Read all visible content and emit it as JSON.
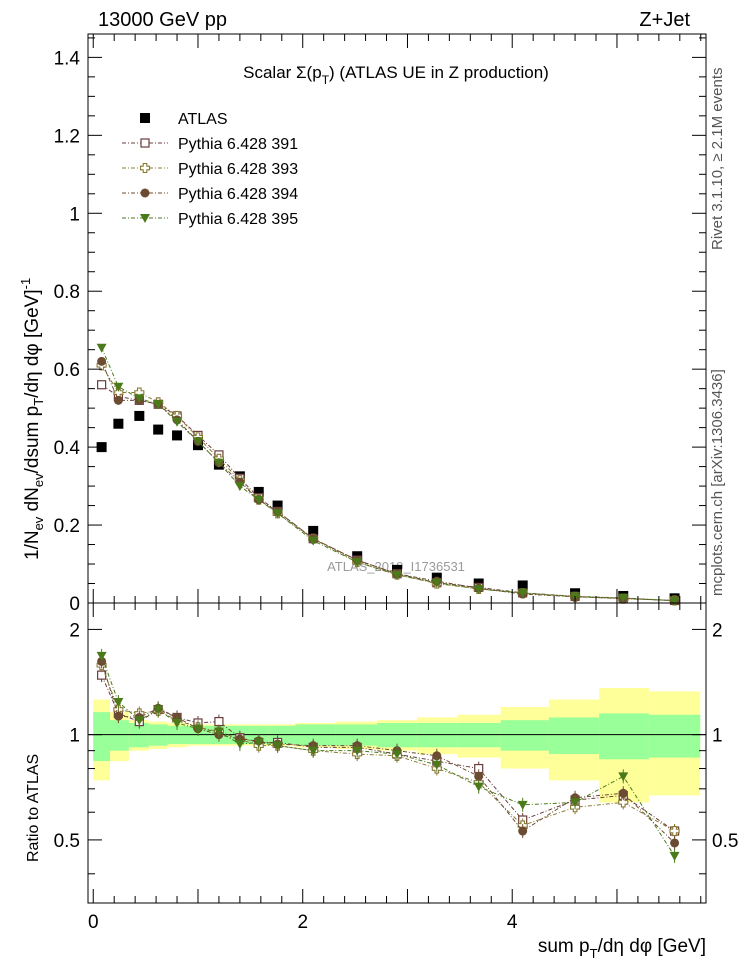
{
  "header": {
    "left": "13000 GeV pp",
    "right": "Z+Jet",
    "watermark": "ATLAS_2019_I1736531",
    "side_top": "Rivet 3.1.10, ≥ 2.1M events",
    "side_bottom": "mcplots.cern.ch [arXiv:1306.3436]"
  },
  "chart_data": {
    "type": "scatter",
    "title": "Scalar Σ(p_T) (ATLAS UE in Z production)",
    "xlabel": "sum p_T/dη dφ [GeV]",
    "ylabel": "1/N_ev dN_ev/dsum p_T/dη dφ [GeV]^-1",
    "ratio_ylabel": "Ratio to ATLAS",
    "xlim": [
      -0.05,
      5.85
    ],
    "ylim": [
      0,
      1.46
    ],
    "ratio_ylim": [
      0.33,
      2.38
    ],
    "xticks": [
      0,
      2,
      4
    ],
    "yticks": [
      0,
      0.2,
      0.4,
      0.6,
      0.8,
      1,
      1.2,
      1.4
    ],
    "yticks_labels": [
      "0",
      "0.2",
      "0.4",
      "0.6",
      "0.8",
      "1",
      "1.2",
      "1.4"
    ],
    "ratio_yticks": [
      0.5,
      1,
      2
    ],
    "legend_position": "top-left",
    "x": [
      0.08,
      0.24,
      0.44,
      0.62,
      0.8,
      1.0,
      1.2,
      1.4,
      1.58,
      1.76,
      2.1,
      2.52,
      2.9,
      3.28,
      3.68,
      4.1,
      4.6,
      5.06,
      5.55
    ],
    "reference_band": {
      "inner": [
        0.16,
        0.1,
        0.08,
        0.07,
        0.06,
        0.06,
        0.06,
        0.06,
        0.06,
        0.06,
        0.07,
        0.07,
        0.08,
        0.08,
        0.08,
        0.1,
        0.12,
        0.15,
        0.14
      ],
      "outer": [
        0.26,
        0.16,
        0.1,
        0.09,
        0.08,
        0.07,
        0.07,
        0.07,
        0.07,
        0.07,
        0.08,
        0.09,
        0.1,
        0.12,
        0.14,
        0.2,
        0.26,
        0.36,
        0.33
      ]
    },
    "series": [
      {
        "name": "ATLAS",
        "color": "#000000",
        "marker": "square-filled",
        "values": [
          0.4,
          0.46,
          0.48,
          0.445,
          0.43,
          0.405,
          0.355,
          0.325,
          0.285,
          0.25,
          0.185,
          0.12,
          0.085,
          0.065,
          0.05,
          0.045,
          0.025,
          0.018,
          0.012
        ]
      },
      {
        "name": "Pythia 6.428 391",
        "color": "#6a3d3d",
        "marker": "square-open",
        "values": [
          0.56,
          0.53,
          0.52,
          0.51,
          0.48,
          0.43,
          0.38,
          0.32,
          0.27,
          0.235,
          0.165,
          0.11,
          0.075,
          0.052,
          0.04,
          0.026,
          0.017,
          0.012,
          0.0065
        ],
        "ratio": [
          1.48,
          1.15,
          1.09,
          1.18,
          1.12,
          1.08,
          1.09,
          0.98,
          0.95,
          0.95,
          0.92,
          0.92,
          0.88,
          0.84,
          0.8,
          0.57,
          0.65,
          0.67,
          0.53
        ]
      },
      {
        "name": "Pythia 6.428 393",
        "color": "#8a7a35",
        "marker": "cross-open",
        "values": [
          0.61,
          0.54,
          0.54,
          0.515,
          0.48,
          0.425,
          0.37,
          0.315,
          0.265,
          0.23,
          0.165,
          0.105,
          0.073,
          0.05,
          0.036,
          0.025,
          0.016,
          0.011,
          0.0065
        ],
        "ratio": [
          1.58,
          1.18,
          1.15,
          1.17,
          1.1,
          1.05,
          1.02,
          0.97,
          0.93,
          0.93,
          0.9,
          0.88,
          0.87,
          0.8,
          0.73,
          0.55,
          0.62,
          0.64,
          0.53
        ]
      },
      {
        "name": "Pythia 6.428 394",
        "color": "#6b4c32",
        "marker": "circle-filled",
        "values": [
          0.62,
          0.52,
          0.52,
          0.51,
          0.47,
          0.415,
          0.36,
          0.31,
          0.265,
          0.235,
          0.165,
          0.11,
          0.075,
          0.056,
          0.038,
          0.023,
          0.016,
          0.012,
          0.006
        ],
        "ratio": [
          1.62,
          1.13,
          1.12,
          1.19,
          1.12,
          1.04,
          1.0,
          0.97,
          0.96,
          0.94,
          0.93,
          0.93,
          0.9,
          0.87,
          0.76,
          0.53,
          0.66,
          0.68,
          0.49
        ]
      },
      {
        "name": "Pythia 6.428 395",
        "color": "#4a7a1a",
        "marker": "triangle-down-filled",
        "values": [
          0.655,
          0.555,
          0.525,
          0.51,
          0.465,
          0.415,
          0.36,
          0.3,
          0.265,
          0.23,
          0.16,
          0.105,
          0.072,
          0.052,
          0.036,
          0.026,
          0.017,
          0.013,
          0.0058
        ],
        "ratio": [
          1.68,
          1.24,
          1.1,
          1.18,
          1.08,
          1.04,
          1.02,
          0.94,
          0.95,
          0.93,
          0.9,
          0.9,
          0.88,
          0.82,
          0.71,
          0.63,
          0.64,
          0.76,
          0.45
        ]
      }
    ]
  }
}
